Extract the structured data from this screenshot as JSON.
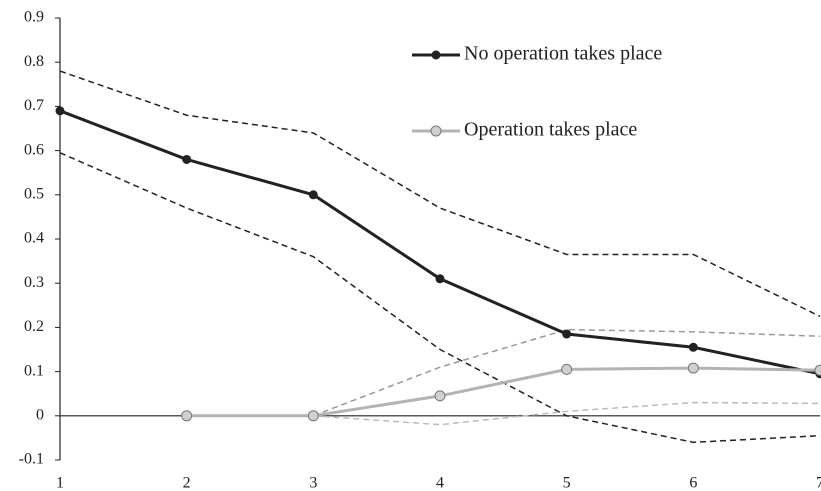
{
  "chart_data": {
    "type": "line",
    "x": [
      1,
      2,
      3,
      4,
      5,
      6,
      7
    ],
    "xlim": [
      1,
      7
    ],
    "xticks": [
      1,
      2,
      3,
      4,
      5,
      6,
      7
    ],
    "ylim": [
      -0.1,
      0.9
    ],
    "yticks": [
      -0.1,
      0,
      0.1,
      0.2,
      0.3,
      0.4,
      0.5,
      0.6,
      0.7,
      0.8,
      0.9
    ],
    "grid": false,
    "series": [
      {
        "color": "#222222",
        "dashed": true,
        "values": [
          0.78,
          0.68,
          0.64,
          0.47,
          0.365,
          0.365,
          0.225
        ]
      },
      {
        "color": "#222222",
        "dashed": true,
        "values": [
          0.595,
          0.47,
          0.36,
          0.15,
          0.0,
          -0.06,
          -0.045
        ]
      },
      {
        "color": "#999999",
        "dashed": true,
        "values": [
          null,
          null,
          0.0,
          0.11,
          0.195,
          0.19,
          0.18
        ]
      },
      {
        "color": "#bbbbbb",
        "dashed": true,
        "values": [
          null,
          null,
          0.0,
          -0.02,
          0.01,
          0.03,
          0.028
        ]
      },
      {
        "name": "No operation takes place",
        "color": "#222222",
        "marker_fill": "#222222",
        "values": [
          0.69,
          0.58,
          0.5,
          0.31,
          0.185,
          0.155,
          0.095
        ]
      },
      {
        "name": "Operation takes place",
        "color": "#b3b3b3",
        "marker_fill": "#d0d0d0",
        "marker_stroke": "#777777",
        "values": [
          null,
          0.0,
          0.0,
          0.045,
          0.105,
          0.108,
          0.103
        ]
      }
    ]
  }
}
